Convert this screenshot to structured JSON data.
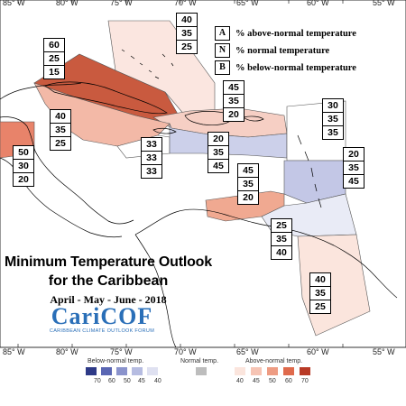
{
  "title_line1": "Minimum Temperature Outlook",
  "title_line2": "for the Caribbean",
  "subtitle": "April - May - June - 2018",
  "logo": {
    "name": "CariCOF",
    "tagline": "CARIBBEAN CLIMATE OUTLOOK FORUM"
  },
  "longitudes_top": [
    "85° W",
    "80° W",
    "75° W",
    "70° W",
    "65° W",
    "60° W",
    "55° W"
  ],
  "longitudes_bottom": [
    "85° W",
    "80° W",
    "75° W",
    "70° W",
    "65° W",
    "60° W",
    "55° W"
  ],
  "legend": [
    {
      "key": "A",
      "text": "% above-normal temperature"
    },
    {
      "key": "N",
      "text": "% normal temperature"
    },
    {
      "key": "B",
      "text": "% below-normal temperature"
    }
  ],
  "regions": [
    {
      "name": "Bahamas-Cuba",
      "values": [
        "60",
        "25",
        "15"
      ],
      "color": "#c95a3f"
    },
    {
      "name": "Turks-Caicos",
      "values": [
        "40",
        "35",
        "25"
      ],
      "color": "#fbe6e0"
    },
    {
      "name": "Hispaniola-north",
      "values": [
        "45",
        "35",
        "20"
      ],
      "color": "#f6cfc4"
    },
    {
      "name": "Central-America",
      "values": [
        "40",
        "35",
        "25"
      ],
      "color": "#f3b9a7"
    },
    {
      "name": "Belize",
      "values": [
        "50",
        "30",
        "20"
      ],
      "color": "#e8836a"
    },
    {
      "name": "Cayman",
      "values": [
        "33",
        "33",
        "33"
      ],
      "color": "#ffffff"
    },
    {
      "name": "Jamaica-Haiti-south",
      "values": [
        "20",
        "35",
        "45"
      ],
      "color": "#ccd0ea"
    },
    {
      "name": "Leeward-Islands",
      "values": [
        "30",
        "35",
        "35"
      ],
      "color": "#ffffff"
    },
    {
      "name": "Windward-Islands",
      "values": [
        "20",
        "35",
        "45"
      ],
      "color": "#c3c7e6"
    },
    {
      "name": "ABC-Islands",
      "values": [
        "45",
        "35",
        "20"
      ],
      "color": "#f0a991"
    },
    {
      "name": "Trinidad",
      "values": [
        "25",
        "35",
        "40"
      ],
      "color": "#e9ebf6"
    },
    {
      "name": "Guianas",
      "values": [
        "40",
        "35",
        "25"
      ],
      "color": "#fbe5dd"
    }
  ],
  "colorbar": {
    "below_label": "Below-normal temp.",
    "normal_label": "Normal temp.",
    "above_label": "Above-normal temp.",
    "below_ticks": [
      "70",
      "60",
      "50",
      "45",
      "40"
    ],
    "above_ticks": [
      "40",
      "45",
      "50",
      "60",
      "70"
    ],
    "below_colors": [
      "#2e3a87",
      "#5a66b3",
      "#8a93cc",
      "#b6bce1",
      "#dfe1f1"
    ],
    "normal_color": "#bdbdbd",
    "above_colors": [
      "#fbe5dd",
      "#f6c4b4",
      "#ee9c83",
      "#df6a4c",
      "#b83a26"
    ]
  }
}
